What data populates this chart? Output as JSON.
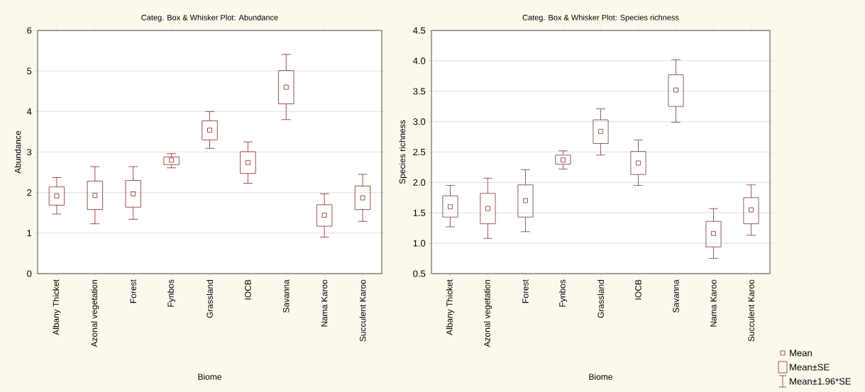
{
  "chart_data": [
    {
      "type": "box",
      "title": "Categ. Box & Whisker Plot: Abundance",
      "xlabel": "Biome",
      "ylabel": "Abundance",
      "categories": [
        "Albany Thicket",
        "Azonal vegetation",
        "Forest",
        "Fynbos",
        "Grassland",
        "IOCB",
        "Savanna",
        "Nama Karoo",
        "Succulent Karoo"
      ],
      "ylim": [
        0,
        6
      ],
      "yticks": [
        0,
        1,
        2,
        3,
        4,
        5,
        6
      ],
      "grid": "y",
      "color": "#8b2323",
      "marker": "square",
      "boxes": [
        {
          "low": 1.47,
          "q1": 1.69,
          "median": 1.92,
          "q3": 2.14,
          "high": 2.37
        },
        {
          "low": 1.23,
          "q1": 1.58,
          "median": 1.93,
          "q3": 2.28,
          "high": 2.64
        },
        {
          "low": 1.34,
          "q1": 1.64,
          "median": 1.97,
          "q3": 2.3,
          "high": 2.64
        },
        {
          "low": 2.61,
          "q1": 2.69,
          "median": 2.8,
          "q3": 2.88,
          "high": 2.96
        },
        {
          "low": 3.09,
          "q1": 3.3,
          "median": 3.54,
          "q3": 3.77,
          "high": 4.0
        },
        {
          "low": 2.23,
          "q1": 2.47,
          "median": 2.74,
          "q3": 3.01,
          "high": 3.25
        },
        {
          "low": 3.8,
          "q1": 4.19,
          "median": 4.6,
          "q3": 5.01,
          "high": 5.41
        },
        {
          "low": 0.9,
          "q1": 1.17,
          "median": 1.44,
          "q3": 1.7,
          "high": 1.97
        },
        {
          "low": 1.29,
          "q1": 1.58,
          "median": 1.87,
          "q3": 2.16,
          "high": 2.45
        }
      ]
    },
    {
      "type": "box",
      "title": "Categ. Box & Whisker Plot: Species richness",
      "xlabel": "Biome",
      "ylabel": "Species richness",
      "categories": [
        "Albany Thicket",
        "Azonal vegetation",
        "Forest",
        "Fynbos",
        "Grassland",
        "IOCB",
        "Savanna",
        "Nama Karoo",
        "Succulent Karoo"
      ],
      "ylim": [
        0.5,
        4.5
      ],
      "yticks": [
        {
          "value": 0.5,
          "label": "0.5"
        },
        {
          "value": 1.0,
          "label": "1.0"
        },
        {
          "value": 1.5,
          "label": "1.5"
        },
        {
          "value": 2.0,
          "label": "2.0"
        },
        {
          "value": 2.5,
          "label": "2.5"
        },
        {
          "value": 3.0,
          "label": "3.0"
        },
        {
          "value": 3.5,
          "label": "3.5"
        },
        {
          "value": 4.0,
          "label": "4.0"
        },
        {
          "value": 4.5,
          "label": "4.5"
        }
      ],
      "grid": "y",
      "color": "#7b3535",
      "marker": "square",
      "boxes": [
        {
          "low": 1.27,
          "q1": 1.43,
          "median": 1.6,
          "q3": 1.78,
          "high": 1.95
        },
        {
          "low": 1.08,
          "q1": 1.32,
          "median": 1.57,
          "q3": 1.82,
          "high": 2.07
        },
        {
          "low": 1.19,
          "q1": 1.43,
          "median": 1.7,
          "q3": 1.96,
          "high": 2.21
        },
        {
          "low": 2.22,
          "q1": 2.3,
          "median": 2.37,
          "q3": 2.45,
          "high": 2.52
        },
        {
          "low": 2.45,
          "q1": 2.64,
          "median": 2.84,
          "q3": 3.03,
          "high": 3.21
        },
        {
          "low": 1.95,
          "q1": 2.13,
          "median": 2.32,
          "q3": 2.51,
          "high": 2.7
        },
        {
          "low": 2.99,
          "q1": 3.25,
          "median": 3.52,
          "q3": 3.77,
          "high": 4.02
        },
        {
          "low": 0.75,
          "q1": 0.94,
          "median": 1.16,
          "q3": 1.36,
          "high": 1.57
        },
        {
          "low": 1.13,
          "q1": 1.32,
          "median": 1.55,
          "q3": 1.75,
          "high": 1.96
        }
      ],
      "annotations": [
        "Mean",
        "Mean±SE",
        "Mean±1.96*SE"
      ]
    }
  ]
}
